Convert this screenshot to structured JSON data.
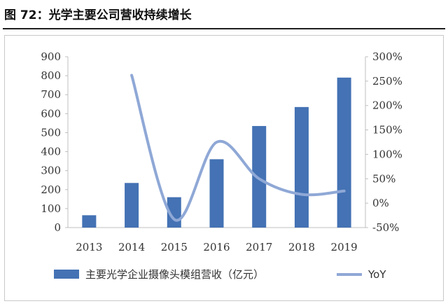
{
  "figure": {
    "title": "图 72：光学主要公司营收持续增长"
  },
  "colors": {
    "bar": "#4472b4",
    "line": "#8fa8d6",
    "axis": "#bfbfbf"
  },
  "chart_data": {
    "type": "bar",
    "categories": [
      "2013",
      "2014",
      "2015",
      "2016",
      "2017",
      "2018",
      "2019"
    ],
    "series": [
      {
        "name": "主要光学企业摄像头模组营收（亿元）",
        "type": "bar",
        "axis": "left",
        "values": [
          65,
          235,
          160,
          360,
          535,
          635,
          790
        ]
      },
      {
        "name": "YoY",
        "type": "line",
        "axis": "right",
        "values": [
          null,
          262,
          -33,
          125,
          50,
          18,
          25
        ]
      }
    ],
    "y_left": {
      "min": 0,
      "max": 900,
      "step": 100,
      "ticks": [
        "0",
        "100",
        "200",
        "300",
        "400",
        "500",
        "600",
        "700",
        "800",
        "900"
      ]
    },
    "y_right": {
      "min": -50,
      "max": 300,
      "step": 50,
      "ticks": [
        "-50%",
        "0%",
        "50%",
        "100%",
        "150%",
        "200%",
        "250%",
        "300%"
      ]
    },
    "legend": {
      "position": "bottom"
    },
    "grid": false
  }
}
